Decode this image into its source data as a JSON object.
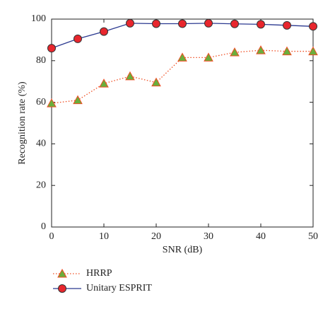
{
  "chart_data": {
    "type": "line",
    "xlabel": "SNR (dB)",
    "ylabel": "Recognition rate (%)",
    "x": [
      0,
      5,
      10,
      15,
      20,
      25,
      30,
      35,
      40,
      45,
      50
    ],
    "series": [
      {
        "name": "HRRP",
        "color": "#f04e23",
        "marker_color": "#6aae3c",
        "marker": "triangle",
        "linestyle": "dotted",
        "values": [
          59.5,
          61,
          69,
          72.5,
          69.5,
          81.5,
          81.5,
          84,
          85,
          84.5,
          84.5
        ]
      },
      {
        "name": "Unitary ESPRIT",
        "color": "#2b3990",
        "marker_color": "#e8262d",
        "marker": "circle",
        "linestyle": "solid",
        "values": [
          86,
          90.5,
          94,
          98,
          97.8,
          97.8,
          98,
          97.7,
          97.5,
          97,
          96.5
        ]
      }
    ],
    "xlim": [
      0,
      50
    ],
    "xticks": [
      0,
      10,
      20,
      30,
      40,
      50
    ],
    "ylim": [
      0,
      100
    ],
    "yticks": [
      0,
      20,
      40,
      60,
      80,
      100
    ],
    "legend": "bottom-left"
  }
}
